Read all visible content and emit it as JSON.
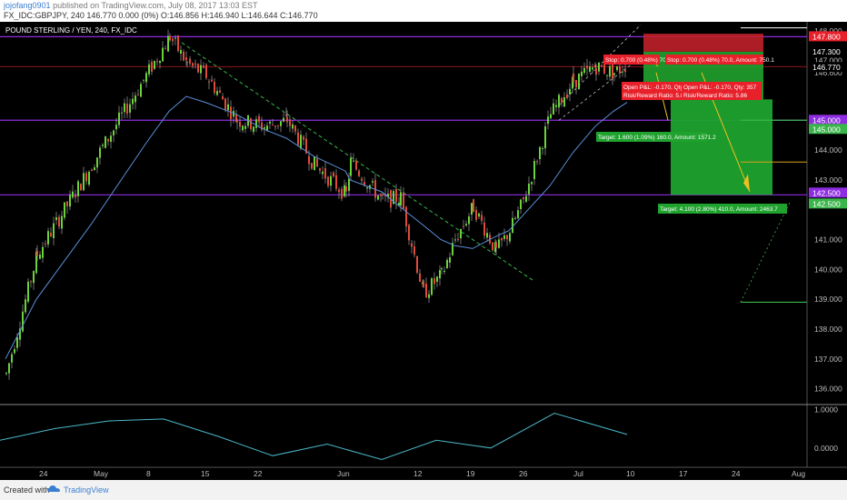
{
  "header": {
    "author": "jojofang0901",
    "published": "published on TradingView.com, July 08, 2017 13:03 EST",
    "ohlc": "FX_IDC:GBPJPY, 240  146.770 0.000 (0%) O:146.856 H:146.940 L:146.644 C:146.770"
  },
  "footer": {
    "created": "Created with",
    "brand": "TradingView"
  },
  "chart_data": [
    {
      "type": "line",
      "title": "POUND STERLING / YEN, 240, FX_IDC",
      "ylim": [
        135.5,
        148.3
      ],
      "x": [
        "Apr 21",
        "Apr 24",
        "May 1",
        "May 8",
        "May 10",
        "May 12",
        "May 15",
        "May 17",
        "May 22",
        "May 25",
        "May 29",
        "Jun 1",
        "Jun 5",
        "Jun 7",
        "Jun 9",
        "Jun 12",
        "Jun 14",
        "Jun 16",
        "Jun 19",
        "Jun 21",
        "Jun 23",
        "Jun 26",
        "Jun 28",
        "Jun 30",
        "Jul 3",
        "Jul 5",
        "Jul 7"
      ],
      "series": [
        {
          "values": [
            136.5,
            140.5,
            143.5,
            146.5,
            147.8,
            146.9,
            146.5,
            145.0,
            144.8,
            145.0,
            143.5,
            142.5,
            143.6,
            142.3,
            142.4,
            139.2,
            139.8,
            141.0,
            142.1,
            140.6,
            141.3,
            142.3,
            145.2,
            146.3,
            146.8,
            146.6,
            146.9
          ]
        },
        {
          "values": [
            137.0,
            139.0,
            141.5,
            144.2,
            145.3,
            145.8,
            145.6,
            145.2,
            144.7,
            144.4,
            143.8,
            143.3,
            143.0,
            142.6,
            142.1,
            141.5,
            141.0,
            140.8,
            140.7,
            141.1,
            141.3,
            141.8,
            142.8,
            143.9,
            144.8,
            145.3,
            145.6
          ]
        }
      ],
      "price_axis_ticks": [
        "148.000",
        "147.000",
        "146.600",
        "144.000",
        "143.000",
        "141.000",
        "140.000",
        "139.000",
        "138.000",
        "137.000",
        "136.000"
      ],
      "price_labels": [
        {
          "text": "147.800",
          "color": "#e8202a"
        },
        {
          "text": "147.300",
          "color": "#ffffff"
        },
        {
          "text": "146.770",
          "color": "#ffffff"
        },
        {
          "text": "145.000",
          "color": "#8e2de2"
        },
        {
          "text": "145.000",
          "color": "#39b54a"
        },
        {
          "text": "142.500",
          "color": "#8e2de2"
        },
        {
          "text": "142.500",
          "color": "#39b54a"
        }
      ],
      "time_axis_ticks": [
        "24",
        "May",
        "8",
        "15",
        "22",
        "Jun",
        "12",
        "19",
        "26",
        "Jul",
        "10",
        "17",
        "24",
        "Aug"
      ],
      "horizontal_levels": [
        147.8,
        146.8,
        145.0,
        142.5
      ],
      "annotations": [
        "Stop: 0.700 (0.48%) 70.0, Amount: 750.1",
        "Stop: 0.700 (0.48%) 70.0, Amount: 750.1",
        "Open P&L: -0.170, Qty: 357",
        "Risk/Reward Ratio: 5.86",
        "Open P&L: -0.170, Qty: 357",
        "Risk/Reward Ratio: 5.86",
        "Target: 1.600 (1.09%) 160.0, Amount: 1571.2",
        "Target: 4.100 (2.80%) 410.0, Amount: 2463.7"
      ]
    },
    {
      "type": "line",
      "ylim": [
        -0.5,
        1.1
      ],
      "x": [
        "Apr 21",
        "Apr 28",
        "May 5",
        "May 12",
        "May 19",
        "May 26",
        "Jun 2",
        "Jun 9",
        "Jun 16",
        "Jun 23",
        "Jun 30",
        "Jul 7"
      ],
      "series": [
        {
          "values": [
            0.2,
            0.5,
            0.7,
            0.75,
            0.3,
            -0.2,
            0.1,
            -0.3,
            0.2,
            0.0,
            0.9,
            0.35
          ]
        }
      ],
      "axis_ticks": [
        "1.0000",
        "0.0000"
      ]
    }
  ]
}
